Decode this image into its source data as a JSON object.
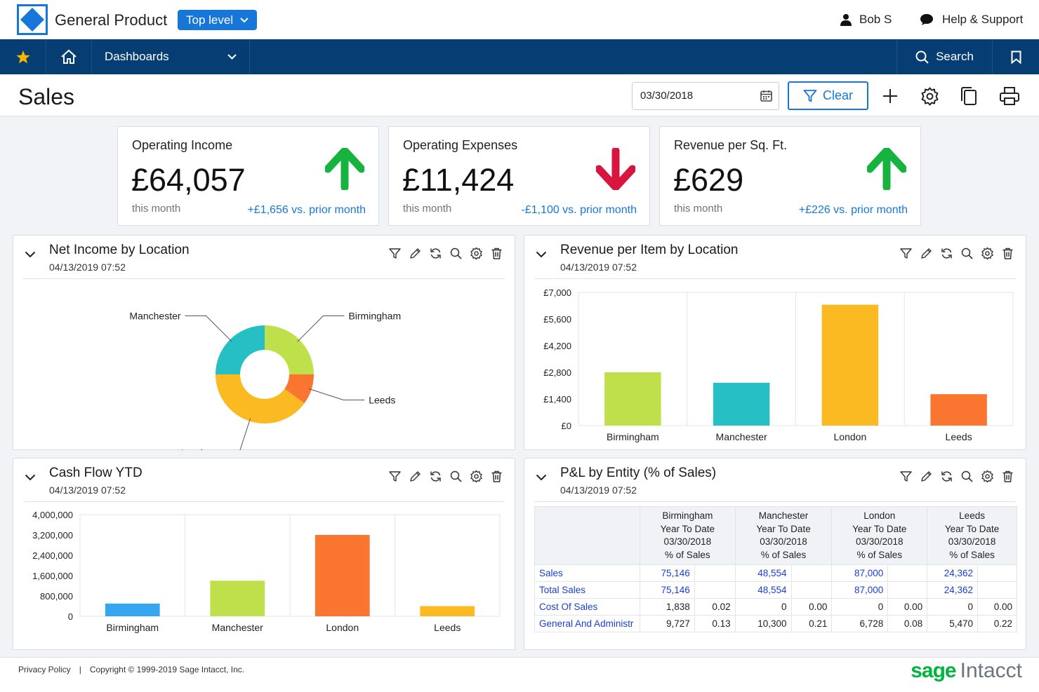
{
  "topbar": {
    "app_title": "General Product",
    "level_label": "Top level",
    "user_name": "Bob S",
    "help_label": "Help & Support"
  },
  "nav": {
    "dashboards_label": "Dashboards",
    "search_label": "Search"
  },
  "page": {
    "title": "Sales",
    "date_value": "03/30/2018",
    "clear_label": "Clear"
  },
  "kpis": [
    {
      "label": "Operating Income",
      "value": "£64,057",
      "sub": "this month",
      "change": "+£1,656 vs. prior month",
      "direction": "up",
      "color": "#16b33f"
    },
    {
      "label": "Operating Expenses",
      "value": "£11,424",
      "sub": "this month",
      "change": "-£1,100 vs. prior month",
      "direction": "down",
      "color": "#d8153f"
    },
    {
      "label": "Revenue per Sq. Ft.",
      "value": "£629",
      "sub": "this month",
      "change": "+£226 vs. prior month",
      "direction": "up",
      "color": "#16b33f"
    }
  ],
  "panels": {
    "net_income": {
      "title": "Net Income by Location",
      "date": "04/13/2019 07:52"
    },
    "revenue_item": {
      "title": "Revenue per Item by Location",
      "date": "04/13/2019 07:52"
    },
    "cash_flow": {
      "title": "Cash Flow YTD",
      "date": "04/13/2019 07:52"
    },
    "pl_entity": {
      "title": "P&L by Entity (% of Sales)",
      "date": "04/13/2019 07:52"
    }
  },
  "chart_data": [
    {
      "type": "pie",
      "title": "Net Income by Location",
      "categories": [
        "Birmingham",
        "Leeds",
        "London",
        "Manchester"
      ],
      "values": [
        25,
        10,
        40,
        25
      ],
      "colors": [
        "#bfe04a",
        "#fa7530",
        "#fbb922",
        "#26bfc4"
      ]
    },
    {
      "type": "bar",
      "title": "Revenue per Item by Location",
      "categories": [
        "Birmingham",
        "Manchester",
        "London",
        "Leeds"
      ],
      "values": [
        2800,
        2250,
        6350,
        1650
      ],
      "colors": [
        "#bfe04a",
        "#26bfc4",
        "#fbb922",
        "#fa7530"
      ],
      "ylim": [
        0,
        7000
      ],
      "yticks": [
        "£0",
        "£1,400",
        "£2,800",
        "£4,200",
        "£5,600",
        "£7,000"
      ]
    },
    {
      "type": "bar",
      "title": "Cash Flow YTD",
      "categories": [
        "Birmingham",
        "Manchester",
        "London",
        "Leeds"
      ],
      "values": [
        500000,
        1400000,
        3200000,
        400000
      ],
      "colors": [
        "#34a7f0",
        "#bfe04a",
        "#fa7530",
        "#fbb922"
      ],
      "ylim": [
        0,
        4000000
      ],
      "yticks": [
        "0",
        "800,000",
        "1,600,000",
        "2,400,000",
        "3,200,000",
        "4,000,000"
      ]
    }
  ],
  "pl_table": {
    "headers": [
      [
        "Birmingham",
        "Year To Date",
        "03/30/2018",
        "% of Sales"
      ],
      [
        "Manchester",
        "Year To Date",
        "03/30/2018",
        "% of Sales"
      ],
      [
        "London",
        "Year To Date",
        "03/30/2018",
        "% of Sales"
      ],
      [
        "Leeds",
        "Year To Date",
        "03/30/2018",
        "% of Sales"
      ]
    ],
    "rows": [
      {
        "label": "Sales",
        "cells": [
          "75,146",
          "",
          "48,554",
          "",
          "87,000",
          "",
          "24,362",
          ""
        ],
        "link": true
      },
      {
        "label": "Total Sales",
        "cells": [
          "75,146",
          "",
          "48,554",
          "",
          "87,000",
          "",
          "24,362",
          ""
        ],
        "link": true
      },
      {
        "label": "Cost Of Sales",
        "cells": [
          "1,838",
          "0.02",
          "0",
          "0.00",
          "0",
          "0.00",
          "0",
          "0.00"
        ],
        "link": false
      },
      {
        "label": "General And Administr",
        "cells": [
          "9,727",
          "0.13",
          "10,300",
          "0.21",
          "6,728",
          "0.08",
          "5,470",
          "0.22"
        ],
        "link": false
      }
    ]
  },
  "footer": {
    "privacy": "Privacy Policy",
    "separator": "|",
    "copyright": "Copyright © 1999-2019 Sage Intacct, Inc.",
    "brand_a": "sage",
    "brand_b": "Intacct"
  }
}
